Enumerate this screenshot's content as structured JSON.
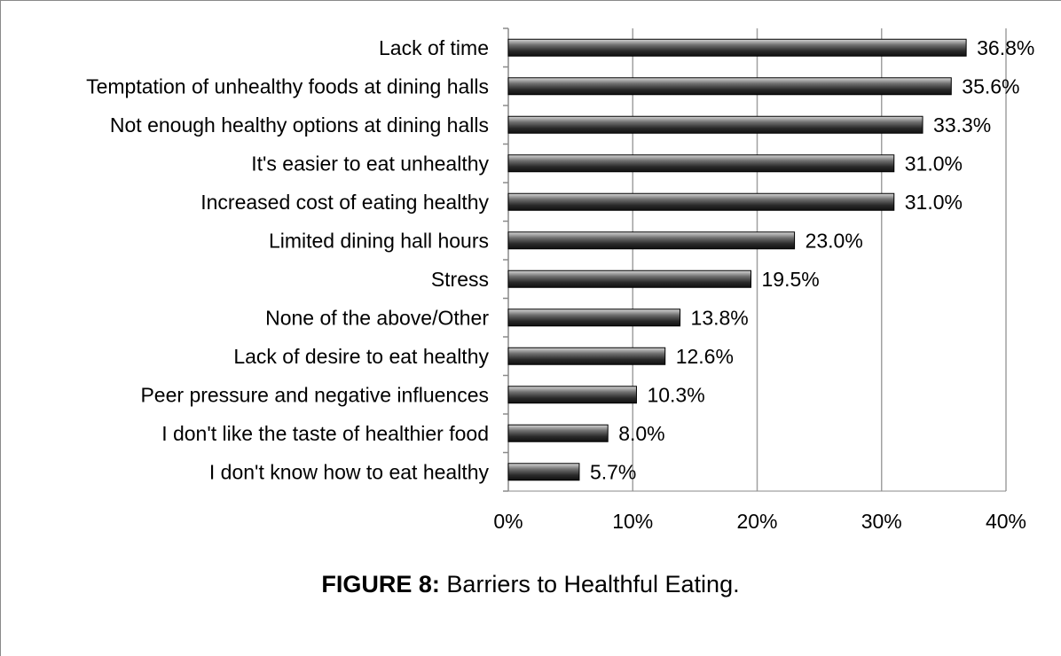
{
  "chart_data": {
    "type": "bar",
    "orientation": "horizontal",
    "categories": [
      "Lack of time",
      "Temptation of unhealthy foods at dining halls",
      "Not enough healthy options at dining halls",
      "It's easier to eat unhealthy",
      "Increased cost of eating healthy",
      "Limited dining hall hours",
      "Stress",
      "None of the above/Other",
      "Lack of desire to eat healthy",
      "Peer pressure and negative influences",
      "I don't like the taste of healthier food",
      "I don't know how to eat healthy"
    ],
    "values": [
      36.8,
      35.6,
      33.3,
      31.0,
      31.0,
      23.0,
      19.5,
      13.8,
      12.6,
      10.3,
      8.0,
      5.7
    ],
    "data_labels": [
      "36.8%",
      "35.6%",
      "33.3%",
      "31.0%",
      "31.0%",
      "23.0%",
      "19.5%",
      "13.8%",
      "12.6%",
      "10.3%",
      "8.0%",
      "5.7%"
    ],
    "xlim": [
      0,
      40
    ],
    "x_ticks": [
      0,
      10,
      20,
      30,
      40
    ],
    "x_tick_labels": [
      "0%",
      "10%",
      "20%",
      "30%",
      "40%"
    ],
    "grid": "vertical",
    "legend": "none",
    "bar_color": "#4a4a4a"
  },
  "caption": {
    "label": "FIGURE 8:",
    "text": " Barriers to Healthful Eating."
  }
}
